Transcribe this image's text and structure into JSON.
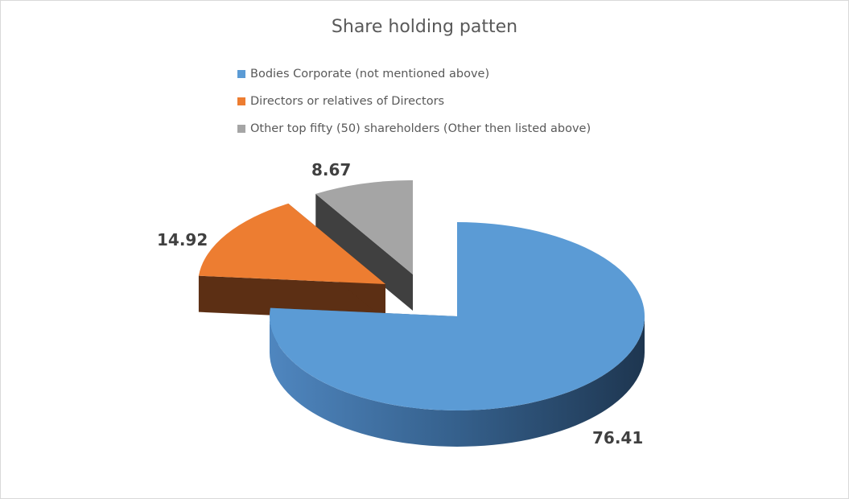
{
  "chart_data": {
    "type": "pie",
    "title": "Share holding patten",
    "three_d": true,
    "exploded": true,
    "legend_position": "top",
    "series": [
      {
        "name": "Bodies Corporate (not mentioned above)",
        "value": 76.41,
        "color": "#5b9bd5",
        "side_color": "#2e5a85"
      },
      {
        "name": "Directors or relatives of Directors",
        "value": 14.92,
        "color": "#ed7d31",
        "side_color": "#5c2f14"
      },
      {
        "name": "Other top fifty (50) shareholders (Other then listed above)",
        "value": 8.67,
        "color": "#a5a5a5",
        "side_color": "#404040"
      }
    ],
    "data_labels": [
      "76.41",
      "14.92",
      "8.67"
    ]
  }
}
